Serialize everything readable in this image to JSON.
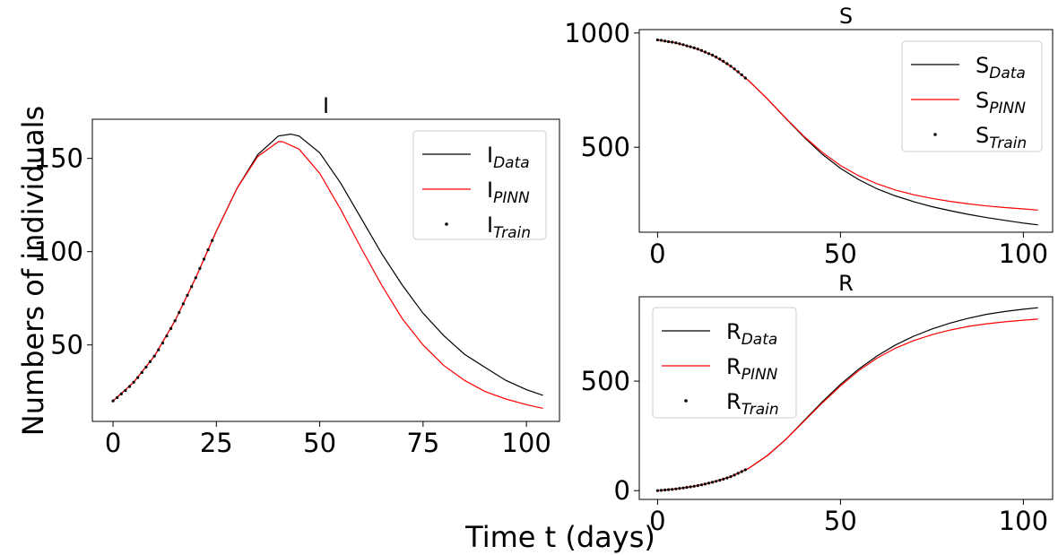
{
  "figure": {
    "xlabel": "Time t (days)",
    "ylabel": "Numbers of individuals"
  },
  "chart_data": [
    {
      "id": "I",
      "type": "line",
      "title": "I",
      "xlim": [
        -5,
        108
      ],
      "ylim": [
        9,
        171
      ],
      "xticks": [
        0,
        25,
        50,
        75,
        100
      ],
      "yticks": [
        50,
        100,
        150
      ],
      "legend_position": "top-right",
      "series": [
        {
          "name": "I",
          "subscript": "Data",
          "color": "#000000",
          "style": "line",
          "x": [
            0,
            5,
            10,
            15,
            20,
            25,
            30,
            35,
            40,
            43,
            45,
            50,
            55,
            60,
            65,
            70,
            75,
            80,
            85,
            90,
            95,
            100,
            104
          ],
          "y": [
            20,
            30,
            44,
            63,
            86,
            111,
            134,
            152,
            162,
            163,
            162,
            153,
            137,
            118,
            99,
            82,
            67,
            55,
            45,
            38,
            31,
            26,
            23
          ]
        },
        {
          "name": "I",
          "subscript": "PINN",
          "color": "#ff0000",
          "style": "line",
          "x": [
            0,
            5,
            10,
            15,
            20,
            25,
            30,
            35,
            40,
            41,
            45,
            50,
            55,
            60,
            65,
            70,
            75,
            80,
            85,
            90,
            95,
            100,
            104
          ],
          "y": [
            20,
            30,
            44,
            63,
            86,
            111,
            134,
            151,
            159,
            159,
            155,
            142,
            123,
            102,
            82,
            64,
            50,
            39,
            31,
            25,
            21,
            18,
            16
          ]
        },
        {
          "name": "I",
          "subscript": "Train",
          "color": "#000000",
          "style": "points",
          "x": [
            0,
            1,
            2,
            3,
            4,
            5,
            6,
            7,
            8,
            9,
            10,
            11,
            12,
            13,
            14,
            15,
            16,
            17,
            18,
            19,
            20,
            21,
            22,
            23,
            24
          ],
          "y": [
            20,
            21.8,
            23.7,
            25.6,
            27.7,
            30,
            32.5,
            35.2,
            38.1,
            41,
            44,
            47.4,
            51,
            54.8,
            58.8,
            63,
            67.4,
            72,
            76.6,
            81.3,
            86,
            91,
            96,
            101,
            106
          ]
        }
      ]
    },
    {
      "id": "S",
      "type": "line",
      "title": "S",
      "xlim": [
        -5,
        108
      ],
      "ylim": [
        128,
        1015
      ],
      "xticks": [
        0,
        50,
        100
      ],
      "yticks": [
        500,
        1000
      ],
      "legend_position": "top-right",
      "series": [
        {
          "name": "S",
          "subscript": "Data",
          "color": "#000000",
          "style": "line",
          "x": [
            0,
            5,
            10,
            15,
            20,
            25,
            30,
            35,
            40,
            45,
            50,
            55,
            60,
            65,
            70,
            75,
            80,
            85,
            90,
            95,
            100,
            104
          ],
          "y": [
            970,
            957,
            935,
            903,
            855,
            790,
            712,
            627,
            545,
            470,
            408,
            358,
            318,
            287,
            262,
            240,
            222,
            206,
            192,
            180,
            168,
            160
          ]
        },
        {
          "name": "S",
          "subscript": "PINN",
          "color": "#ff0000",
          "style": "line",
          "x": [
            0,
            5,
            10,
            15,
            20,
            25,
            30,
            35,
            40,
            45,
            50,
            55,
            60,
            65,
            70,
            75,
            80,
            85,
            90,
            95,
            100,
            104
          ],
          "y": [
            970,
            957,
            935,
            903,
            855,
            790,
            712,
            628,
            548,
            478,
            420,
            375,
            340,
            313,
            292,
            276,
            263,
            252,
            243,
            236,
            230,
            225
          ]
        },
        {
          "name": "S",
          "subscript": "Train",
          "color": "#000000",
          "style": "points",
          "x": [
            0,
            1,
            2,
            3,
            4,
            5,
            6,
            7,
            8,
            9,
            10,
            11,
            12,
            13,
            14,
            15,
            16,
            17,
            18,
            19,
            20,
            21,
            22,
            23,
            24
          ],
          "y": [
            970,
            968,
            965,
            962,
            960,
            957,
            953,
            949,
            944,
            940,
            935,
            930,
            924,
            917,
            910,
            903,
            895,
            886,
            876,
            866,
            855,
            843,
            830,
            817,
            803
          ]
        }
      ]
    },
    {
      "id": "R",
      "type": "line",
      "title": "R",
      "xlim": [
        -5,
        108
      ],
      "ylim": [
        -40,
        885
      ],
      "xticks": [
        0,
        50,
        100
      ],
      "yticks": [
        0,
        500
      ],
      "legend_position": "top-left",
      "series": [
        {
          "name": "R",
          "subscript": "Data",
          "color": "#000000",
          "style": "line",
          "x": [
            0,
            5,
            10,
            15,
            20,
            25,
            30,
            35,
            40,
            45,
            50,
            55,
            60,
            65,
            70,
            75,
            80,
            85,
            90,
            95,
            100,
            104
          ],
          "y": [
            0,
            8,
            20,
            38,
            64,
            103,
            160,
            233,
            319,
            405,
            485,
            555,
            615,
            665,
            705,
            738,
            765,
            787,
            805,
            818,
            828,
            835
          ]
        },
        {
          "name": "R",
          "subscript": "PINN",
          "color": "#ff0000",
          "style": "line",
          "x": [
            0,
            5,
            10,
            15,
            20,
            25,
            30,
            35,
            40,
            45,
            50,
            55,
            60,
            65,
            70,
            75,
            80,
            85,
            90,
            95,
            100,
            104
          ],
          "y": [
            0,
            8,
            20,
            38,
            64,
            103,
            160,
            233,
            316,
            400,
            478,
            548,
            605,
            650,
            685,
            712,
            733,
            750,
            762,
            771,
            778,
            783
          ]
        },
        {
          "name": "R",
          "subscript": "Train",
          "color": "#000000",
          "style": "points",
          "x": [
            0,
            1,
            2,
            3,
            4,
            5,
            6,
            7,
            8,
            9,
            10,
            11,
            12,
            13,
            14,
            15,
            16,
            17,
            18,
            19,
            20,
            21,
            22,
            23,
            24
          ],
          "y": [
            0,
            1.5,
            3,
            4.5,
            6,
            8,
            10.2,
            12.5,
            15,
            17.5,
            20,
            23,
            26.5,
            30,
            34,
            38,
            42.5,
            47.5,
            52.5,
            58,
            64,
            71,
            79,
            87,
            95
          ]
        }
      ]
    }
  ]
}
